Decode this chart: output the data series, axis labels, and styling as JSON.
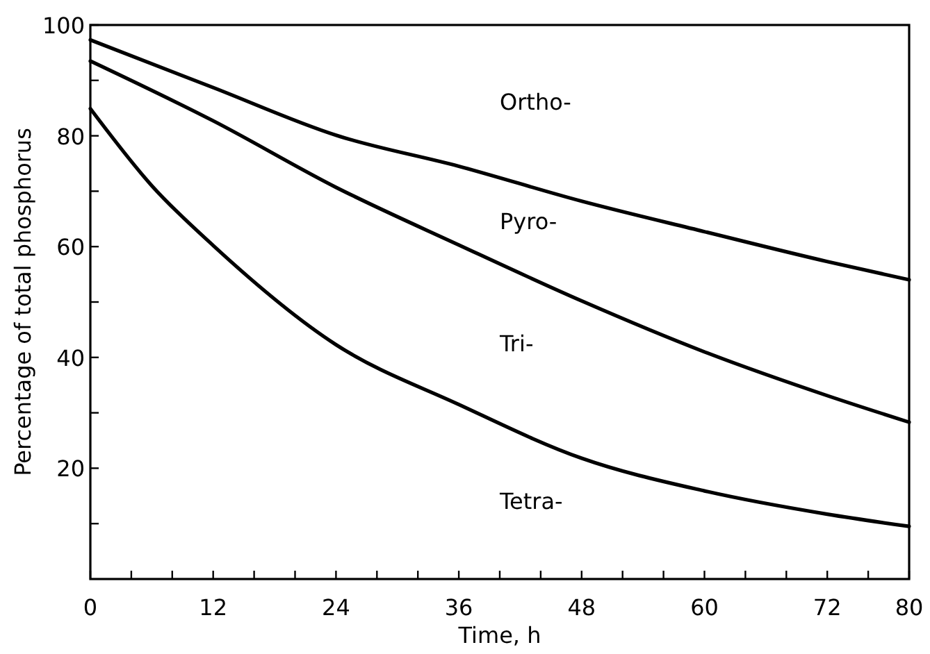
{
  "chart_data": {
    "type": "line",
    "xlabel": "Time, h",
    "ylabel": "Percentage of total phosphorus",
    "xlim": [
      0,
      80
    ],
    "ylim": [
      0,
      100
    ],
    "xticks": [
      0,
      {
        "value": 4,
        "label": null
      },
      {
        "value": 8,
        "label": null
      },
      12,
      {
        "value": 16,
        "label": null
      },
      {
        "value": 20,
        "label": null
      },
      24,
      {
        "value": 28,
        "label": null
      },
      {
        "value": 32,
        "label": null
      },
      36,
      {
        "value": 40,
        "label": null
      },
      {
        "value": 44,
        "label": null
      },
      48,
      {
        "value": 52,
        "label": null
      },
      {
        "value": 56,
        "label": null
      },
      60,
      {
        "value": 64,
        "label": null
      },
      {
        "value": 68,
        "label": null
      },
      72,
      {
        "value": 76,
        "label": null
      },
      80
    ],
    "yticks": [
      {
        "value": 10,
        "label": null
      },
      20,
      {
        "value": 30,
        "label": null
      },
      40,
      {
        "value": 50,
        "label": null
      },
      60,
      {
        "value": 70,
        "label": null
      },
      80,
      {
        "value": 90,
        "label": null
      },
      100
    ],
    "grid": false,
    "marker": "none",
    "line_style": "solid",
    "x": [
      0,
      12,
      24,
      36,
      48,
      60,
      72,
      80
    ],
    "series": [
      {
        "color": "#000000",
        "values": [
          97.3,
          88.7,
          80.1,
          74.5,
          68.2,
          62.7,
          57.3,
          54.0
        ]
      },
      {
        "color": "#000000",
        "values": [
          93.5,
          82.7,
          70.7,
          60.3,
          50.2,
          41.0,
          33.1,
          28.3
        ]
      },
      {
        "color": "#000000",
        "x": [
          0,
          6,
          12,
          24,
          36,
          48,
          60,
          72,
          80
        ],
        "values": [
          84.9,
          71,
          60.2,
          42.3,
          31.5,
          21.8,
          15.9,
          11.7,
          9.5
        ]
      }
    ],
    "annotations": [
      "Ortho-",
      "Pyro-",
      "Tri-",
      "Tetra-"
    ]
  }
}
